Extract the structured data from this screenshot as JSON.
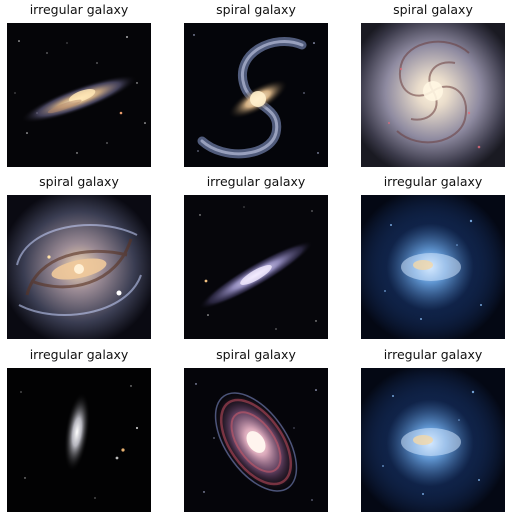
{
  "grid": {
    "items": [
      {
        "label": "irregular galaxy",
        "image": "edge-on-galaxy-tilted"
      },
      {
        "label": "spiral galaxy",
        "image": "barred-spiral-galaxy"
      },
      {
        "label": "spiral galaxy",
        "image": "face-on-spiral-galaxy"
      },
      {
        "label": "spiral galaxy",
        "image": "barred-spiral-galaxy-dusty"
      },
      {
        "label": "irregular galaxy",
        "image": "edge-on-galaxy-diagonal"
      },
      {
        "label": "irregular galaxy",
        "image": "blue-irregular-galaxy"
      },
      {
        "label": "irregular galaxy",
        "image": "elliptical-galaxy-vertical"
      },
      {
        "label": "spiral galaxy",
        "image": "inclined-spiral-galaxy"
      },
      {
        "label": "irregular galaxy",
        "image": "blue-irregular-galaxy"
      }
    ]
  },
  "colors": {
    "background": "#ffffff",
    "caption": "#111111",
    "space": "#000000"
  }
}
